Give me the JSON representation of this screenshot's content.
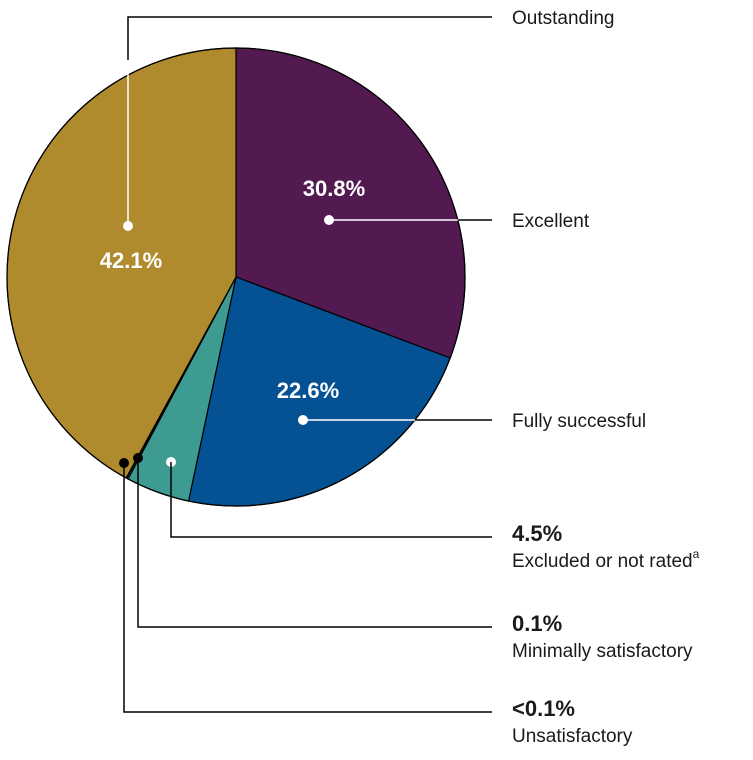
{
  "chart_data": {
    "type": "pie",
    "slices": [
      {
        "label": "Excellent",
        "value": 30.8,
        "display": "30.8%",
        "color": "#531a51",
        "label_style": "inside"
      },
      {
        "label": "Fully successful",
        "value": 22.6,
        "display": "22.6%",
        "color": "#045294",
        "label_style": "inside"
      },
      {
        "label": "Excluded or not rated",
        "superscript": "a",
        "value": 4.5,
        "display": "4.5%",
        "color": "#3e9b92",
        "label_style": "outside"
      },
      {
        "label": "Minimally satisfactory",
        "value": 0.1,
        "display": "0.1%",
        "color": "#9ecae8",
        "label_style": "outside"
      },
      {
        "label": "Unsatisfactory",
        "value": 0.05,
        "display": "<0.1%",
        "color": "#9ecae8",
        "label_style": "outside"
      },
      {
        "label": "Outstanding",
        "value": 42.1,
        "display": "42.1%",
        "color": "#b08b2e",
        "label_style": "inside"
      }
    ],
    "colors": {
      "line": "#000000",
      "text": "#1a1a1a",
      "inner_text": "#ffffff"
    }
  }
}
